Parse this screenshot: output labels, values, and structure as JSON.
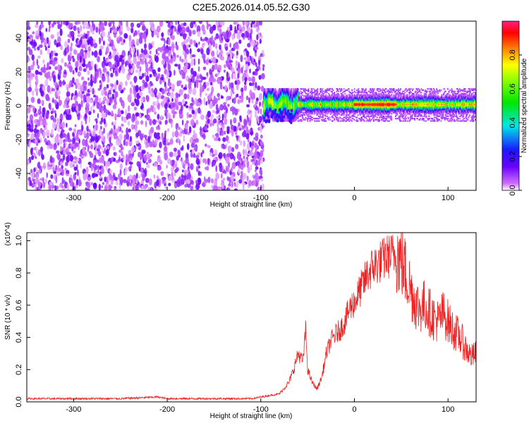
{
  "title": "C2E5.2026.014.05.52.G30",
  "chart_data": [
    {
      "type": "heatmap",
      "xlabel": "Height of straight line (km)",
      "ylabel": "Frequency (Hz)",
      "xlim": [
        -350,
        130
      ],
      "ylim": [
        -50,
        50
      ],
      "xticks": [
        -300,
        -200,
        -100,
        0,
        100
      ],
      "yticks": [
        -40,
        -20,
        0,
        20,
        40
      ],
      "colorbar": {
        "label": "Normalized spectral amplitude",
        "range": [
          0,
          1
        ],
        "ticks": [
          "0.0",
          "0.2",
          "0.4",
          "0.6",
          "0.8"
        ],
        "colormap": "rainbow (magenta-blue-cyan-green-yellow-red)"
      },
      "regions": [
        {
          "x_range": [
            -350,
            -97
          ],
          "freq_range": [
            -50,
            50
          ],
          "amplitude": "low (0.0-0.15, speckled purple noise)"
        },
        {
          "x_range": [
            -97,
            130
          ],
          "freq_range": [
            -5,
            8
          ],
          "amplitude": "peak near 0 Hz, rising to ~0.9 between 0 and 40 km"
        }
      ]
    },
    {
      "type": "line",
      "xlabel": "Height of straight line (km)",
      "ylabel": "SNR (10 * v/v)",
      "yscale_label": "(x10^4)",
      "xlim": [
        -350,
        130
      ],
      "ylim": [
        0,
        1.05
      ],
      "xticks": [
        -300,
        -200,
        -100,
        0,
        100
      ],
      "yticks": [
        "0.0",
        "0.2",
        "0.4",
        "0.6",
        "0.8",
        "1.0"
      ],
      "series": [
        {
          "color": "#ee2222",
          "x": [
            -350,
            -300,
            -250,
            -210,
            -200,
            -150,
            -110,
            -100,
            -80,
            -70,
            -65,
            -60,
            -55,
            -52,
            -50,
            -45,
            -40,
            -35,
            -30,
            -25,
            -20,
            -15,
            -10,
            -5,
            0,
            5,
            10,
            15,
            20,
            25,
            30,
            35,
            40,
            45,
            50,
            55,
            60,
            65,
            70,
            75,
            80,
            85,
            90,
            95,
            100,
            105,
            110,
            115,
            120,
            125,
            130
          ],
          "y": [
            0.02,
            0.02,
            0.02,
            0.03,
            0.02,
            0.02,
            0.02,
            0.03,
            0.05,
            0.12,
            0.2,
            0.3,
            0.25,
            0.45,
            0.2,
            0.12,
            0.08,
            0.15,
            0.3,
            0.38,
            0.42,
            0.45,
            0.5,
            0.58,
            0.62,
            0.68,
            0.74,
            0.8,
            0.84,
            0.86,
            0.88,
            0.9,
            0.91,
            0.92,
            0.88,
            0.8,
            0.7,
            0.62,
            0.58,
            0.6,
            0.56,
            0.52,
            0.5,
            0.55,
            0.5,
            0.45,
            0.42,
            0.38,
            0.32,
            0.28,
            0.3
          ]
        }
      ]
    }
  ]
}
